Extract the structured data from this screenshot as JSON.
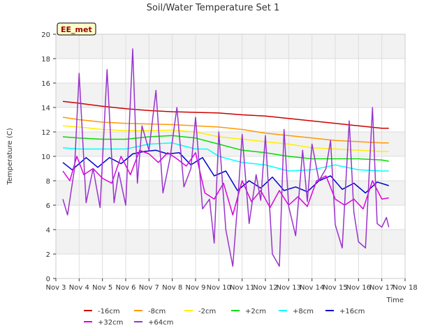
{
  "chart_data": {
    "type": "line",
    "title": "Soil/Water Temperature Set 1",
    "xlabel": "Time",
    "ylabel": "Temperature (C)",
    "station_label": "EE_met",
    "xlim": [
      3,
      18
    ],
    "ylim": [
      0,
      20
    ],
    "x_ticks": [
      {
        "value": 3,
        "label": "Nov 3"
      },
      {
        "value": 4,
        "label": "Nov 4"
      },
      {
        "value": 5,
        "label": "Nov 5"
      },
      {
        "value": 6,
        "label": "Nov 6"
      },
      {
        "value": 7,
        "label": "Nov 7"
      },
      {
        "value": 8,
        "label": "Nov 8"
      },
      {
        "value": 9,
        "label": "Nov 9"
      },
      {
        "value": 10,
        "label": "Nov 10"
      },
      {
        "value": 11,
        "label": "Nov 11"
      },
      {
        "value": 12,
        "label": "Nov 12"
      },
      {
        "value": 13,
        "label": "Nov 13"
      },
      {
        "value": 14,
        "label": "Nov 14"
      },
      {
        "value": 15,
        "label": "Nov 15"
      },
      {
        "value": 16,
        "label": "Nov 16"
      },
      {
        "value": 17,
        "label": "Nov 17"
      },
      {
        "value": 18,
        "label": "Nov 18"
      }
    ],
    "y_ticks": [
      0,
      2,
      4,
      6,
      8,
      10,
      12,
      14,
      16,
      18,
      20
    ],
    "grid": true,
    "legend_position": "bottom",
    "series": [
      {
        "name": "-16cm",
        "color": "#cc0000",
        "x": [
          3.3,
          4,
          5,
          6,
          7,
          8,
          9,
          10,
          11,
          12,
          13,
          14,
          15,
          16,
          16.5,
          17,
          17.3
        ],
        "y": [
          14.5,
          14.35,
          14.1,
          13.9,
          13.75,
          13.65,
          13.6,
          13.55,
          13.4,
          13.3,
          13.1,
          12.9,
          12.7,
          12.5,
          12.4,
          12.3,
          12.3
        ]
      },
      {
        "name": "-8cm",
        "color": "#ff9900",
        "x": [
          3.3,
          4,
          5,
          6,
          7,
          8,
          9,
          10,
          11,
          12,
          13,
          14,
          15,
          16,
          17,
          17.3
        ],
        "y": [
          13.2,
          13.0,
          12.8,
          12.7,
          12.65,
          12.6,
          12.5,
          12.4,
          12.2,
          11.9,
          11.7,
          11.5,
          11.3,
          11.2,
          11.1,
          11.1
        ]
      },
      {
        "name": "-2cm",
        "color": "#ffee00",
        "x": [
          3.3,
          4,
          5,
          6,
          7,
          8,
          9,
          10,
          11,
          12,
          13,
          14,
          15,
          16,
          17,
          17.3
        ],
        "y": [
          12.5,
          12.4,
          12.2,
          12.1,
          12.1,
          12.15,
          12.0,
          11.6,
          11.4,
          11.2,
          11.0,
          10.7,
          10.6,
          10.5,
          10.4,
          10.4
        ]
      },
      {
        "name": "+2cm",
        "color": "#00dd00",
        "x": [
          3.3,
          4,
          5,
          6,
          7,
          8,
          9,
          10,
          11,
          12,
          13,
          14,
          15,
          16,
          17,
          17.3
        ],
        "y": [
          11.6,
          11.5,
          11.4,
          11.4,
          11.6,
          11.7,
          11.5,
          11.0,
          10.5,
          10.3,
          10.0,
          9.8,
          9.8,
          9.8,
          9.7,
          9.6
        ]
      },
      {
        "name": "+8cm",
        "color": "#00ffff",
        "x": [
          3.3,
          4,
          5,
          6,
          7,
          8,
          9,
          9.5,
          10,
          11,
          12,
          13,
          14,
          15,
          16,
          17,
          17.3
        ],
        "y": [
          10.7,
          10.6,
          10.6,
          10.6,
          11.0,
          11.1,
          10.6,
          10.6,
          10.0,
          9.5,
          9.3,
          8.8,
          8.9,
          9.3,
          8.9,
          8.8,
          8.8
        ]
      },
      {
        "name": "+16cm",
        "color": "#0000cc",
        "x": [
          3.3,
          3.7,
          4.3,
          4.8,
          5.3,
          5.8,
          6.3,
          6.8,
          7.3,
          7.8,
          8.3,
          8.8,
          9.3,
          9.8,
          10.3,
          10.8,
          11.3,
          11.8,
          12.3,
          12.8,
          13.3,
          13.8,
          14.3,
          14.8,
          15.3,
          15.8,
          16.3,
          16.8,
          17.3
        ],
        "y": [
          9.5,
          8.9,
          9.9,
          9.1,
          9.9,
          9.4,
          10.2,
          10.4,
          10.5,
          10.2,
          10.3,
          9.3,
          9.9,
          8.4,
          8.8,
          7.2,
          8.0,
          7.4,
          8.3,
          7.2,
          7.5,
          7.1,
          8.0,
          8.4,
          7.3,
          7.8,
          7.0,
          7.9,
          7.6
        ]
      },
      {
        "name": "+32cm",
        "color": "#dd00dd",
        "x": [
          3.3,
          3.6,
          3.9,
          4.2,
          4.6,
          5.0,
          5.4,
          5.8,
          6.2,
          6.6,
          7.0,
          7.4,
          7.8,
          8.2,
          8.6,
          9.0,
          9.4,
          9.8,
          10.2,
          10.6,
          11.0,
          11.4,
          11.8,
          12.2,
          12.6,
          13.0,
          13.4,
          13.8,
          14.2,
          14.6,
          15.0,
          15.4,
          15.8,
          16.2,
          16.6,
          17.0,
          17.3
        ],
        "y": [
          8.8,
          8.0,
          10.0,
          8.5,
          9.0,
          8.2,
          7.8,
          10.0,
          8.5,
          10.5,
          10.2,
          9.5,
          10.3,
          9.8,
          9.2,
          10.3,
          7.0,
          6.5,
          7.8,
          5.2,
          8.0,
          6.3,
          7.2,
          5.8,
          7.2,
          6.0,
          6.7,
          5.9,
          8.0,
          8.4,
          6.5,
          6.0,
          6.5,
          5.7,
          8.0,
          6.5,
          6.6
        ]
      },
      {
        "name": "+64cm",
        "color": "#9933cc",
        "x": [
          3.3,
          3.5,
          3.8,
          4.0,
          4.3,
          4.6,
          4.9,
          5.2,
          5.5,
          5.7,
          6.0,
          6.3,
          6.5,
          6.7,
          7.0,
          7.3,
          7.6,
          7.9,
          8.2,
          8.5,
          8.8,
          9.0,
          9.3,
          9.6,
          9.8,
          10.0,
          10.3,
          10.6,
          10.8,
          11.0,
          11.3,
          11.6,
          11.8,
          12.0,
          12.3,
          12.6,
          12.8,
          13.0,
          13.3,
          13.6,
          13.8,
          14.0,
          14.3,
          14.6,
          14.8,
          15.0,
          15.3,
          15.6,
          15.8,
          16.0,
          16.3,
          16.6,
          16.8,
          17.0,
          17.2,
          17.3
        ],
        "y": [
          6.5,
          5.2,
          9.0,
          16.8,
          6.2,
          9.0,
          5.8,
          17.1,
          6.2,
          8.7,
          6.0,
          18.8,
          7.8,
          12.5,
          10.5,
          15.4,
          7.0,
          9.8,
          14.0,
          7.5,
          9.0,
          13.2,
          5.7,
          6.5,
          2.9,
          12.0,
          4.0,
          1.0,
          6.0,
          11.8,
          4.5,
          8.5,
          6.4,
          11.7,
          2.0,
          1.0,
          12.2,
          5.9,
          3.5,
          10.5,
          6.3,
          11.0,
          8.0,
          9.0,
          11.3,
          4.4,
          2.5,
          12.9,
          5.4,
          3.0,
          2.5,
          14.0,
          4.5,
          4.2,
          5.0,
          4.2
        ]
      }
    ]
  }
}
